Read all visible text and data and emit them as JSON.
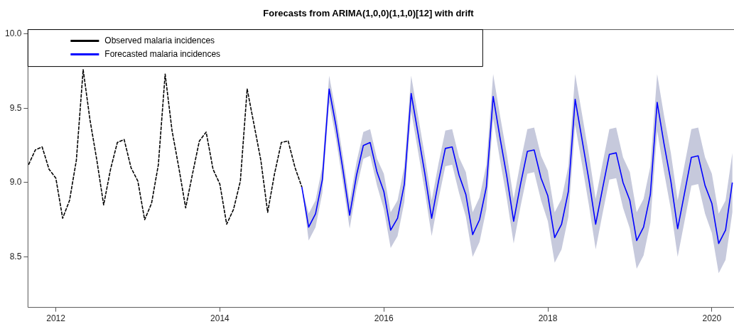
{
  "chart_data": {
    "type": "line",
    "title": "Forecasts from ARIMA(1,0,0)(1,1,0)[12] with drift",
    "xlim": [
      2011.66,
      2020.27
    ],
    "xticks": [
      2012,
      2014,
      2016,
      2018,
      2020
    ],
    "ylim": [
      8.16,
      10.03
    ],
    "yticks": [
      8.5,
      {
        "value": 9,
        "label": "9.0"
      },
      9.5,
      {
        "value": 10,
        "label": "10.0"
      }
    ],
    "grid": false,
    "legend": "top left",
    "series": [
      {
        "name": "Observed malaria incidences",
        "color": "#000000",
        "line_style": "dashed",
        "x": [
          2011.667,
          2011.75,
          2011.833,
          2011.917,
          2012,
          2012.083,
          2012.167,
          2012.25,
          2012.333,
          2012.417,
          2012.5,
          2012.583,
          2012.667,
          2012.75,
          2012.833,
          2012.917,
          2013,
          2013.083,
          2013.167,
          2013.25,
          2013.333,
          2013.417,
          2013.5,
          2013.583,
          2013.667,
          2013.75,
          2013.833,
          2013.917,
          2014,
          2014.083,
          2014.167,
          2014.25,
          2014.333,
          2014.417,
          2014.5,
          2014.583,
          2014.667,
          2014.75,
          2014.833,
          2014.917,
          2015
        ],
        "values": [
          9.12,
          9.22,
          9.24,
          9.09,
          9.03,
          8.76,
          8.88,
          9.15,
          9.76,
          9.42,
          9.15,
          8.85,
          9.09,
          9.27,
          9.29,
          9.1,
          9.01,
          8.75,
          8.86,
          9.12,
          9.73,
          9.35,
          9.1,
          8.83,
          9.06,
          9.28,
          9.34,
          9.09,
          8.99,
          8.72,
          8.82,
          9.01,
          9.63,
          9.39,
          9.15,
          8.8,
          9.06,
          9.27,
          9.28,
          9.1,
          8.97
        ]
      },
      {
        "name": "Forecasted malaria incidences",
        "color": "#0000ff",
        "x": [
          2015,
          2015.083,
          2015.167,
          2015.25,
          2015.333,
          2015.417,
          2015.5,
          2015.583,
          2015.667,
          2015.75,
          2015.833,
          2015.917,
          2016,
          2016.083,
          2016.167,
          2016.25,
          2016.333,
          2016.417,
          2016.5,
          2016.583,
          2016.667,
          2016.75,
          2016.833,
          2016.917,
          2017,
          2017.083,
          2017.167,
          2017.25,
          2017.333,
          2017.417,
          2017.5,
          2017.583,
          2017.667,
          2017.75,
          2017.833,
          2017.917,
          2018,
          2018.083,
          2018.167,
          2018.25,
          2018.333,
          2018.417,
          2018.5,
          2018.583,
          2018.667,
          2018.75,
          2018.833,
          2018.917,
          2019,
          2019.083,
          2019.167,
          2019.25,
          2019.333,
          2019.417,
          2019.5,
          2019.583,
          2019.667,
          2019.75,
          2019.833,
          2019.917,
          2020,
          2020.083,
          2020.167,
          2020.25
        ],
        "values": [
          8.97,
          8.7,
          8.79,
          9.02,
          9.63,
          9.38,
          9.09,
          8.78,
          9.05,
          9.25,
          9.27,
          9.07,
          8.94,
          8.68,
          8.76,
          8.99,
          9.6,
          9.33,
          9.06,
          8.76,
          9.01,
          9.23,
          9.24,
          9.05,
          8.92,
          8.65,
          8.75,
          8.97,
          9.58,
          9.3,
          9.04,
          8.74,
          8.99,
          9.21,
          9.22,
          9.03,
          8.91,
          8.63,
          8.72,
          8.94,
          9.56,
          9.29,
          9.02,
          8.72,
          8.96,
          9.19,
          9.2,
          9.0,
          8.88,
          8.61,
          8.7,
          8.92,
          9.54,
          9.26,
          9.01,
          8.69,
          8.93,
          9.17,
          9.18,
          8.98,
          8.86,
          8.59,
          8.68,
          9.0
        ],
        "lower": [
          8.97,
          8.61,
          8.7,
          8.93,
          9.54,
          9.29,
          9.0,
          8.69,
          8.96,
          9.16,
          9.18,
          8.98,
          8.82,
          8.56,
          8.64,
          8.87,
          9.48,
          9.21,
          8.94,
          8.64,
          8.89,
          9.11,
          9.12,
          8.93,
          8.77,
          8.5,
          8.6,
          8.82,
          9.43,
          9.15,
          8.89,
          8.59,
          8.84,
          9.06,
          9.07,
          8.88,
          8.74,
          8.46,
          8.55,
          8.77,
          9.39,
          9.12,
          8.85,
          8.55,
          8.79,
          9.02,
          9.03,
          8.83,
          8.69,
          8.42,
          8.51,
          8.73,
          9.35,
          9.07,
          8.82,
          8.5,
          8.74,
          8.98,
          8.99,
          8.79,
          8.66,
          8.39,
          8.48,
          8.8
        ],
        "upper": [
          8.97,
          8.79,
          8.88,
          9.11,
          9.72,
          9.47,
          9.18,
          8.87,
          9.14,
          9.34,
          9.36,
          9.16,
          9.06,
          8.8,
          8.88,
          9.11,
          9.72,
          9.45,
          9.18,
          8.88,
          9.13,
          9.35,
          9.36,
          9.17,
          9.07,
          8.8,
          8.9,
          9.12,
          9.73,
          9.45,
          9.19,
          8.89,
          9.14,
          9.36,
          9.37,
          9.18,
          9.08,
          8.8,
          8.89,
          9.11,
          9.73,
          9.46,
          9.19,
          8.89,
          9.13,
          9.36,
          9.37,
          9.17,
          9.07,
          8.8,
          8.89,
          9.11,
          9.73,
          9.45,
          9.2,
          8.88,
          9.12,
          9.36,
          9.37,
          9.17,
          9.06,
          8.79,
          8.88,
          9.2
        ]
      }
    ]
  }
}
